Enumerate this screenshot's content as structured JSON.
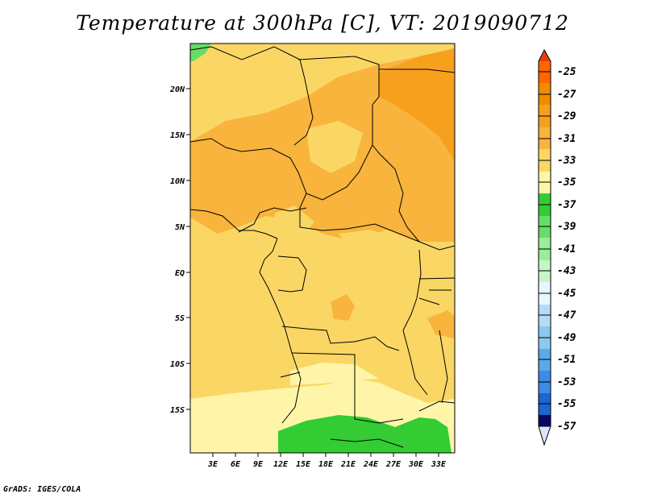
{
  "title": "Temperature at 300hPa [C], VT: 2019090712",
  "credit": "GrADS: IGES/COLA",
  "map": {
    "lon_labels": [
      "3E",
      "6E",
      "9E",
      "12E",
      "15E",
      "18E",
      "21E",
      "24E",
      "27E",
      "30E",
      "33E"
    ],
    "lat_labels": [
      "20N",
      "15N",
      "10N",
      "5N",
      "EQ",
      "5S",
      "10S",
      "15S"
    ]
  },
  "colorbar": {
    "labels": [
      "-25",
      "-27",
      "-29",
      "-31",
      "-33",
      "-35",
      "-37",
      "-39",
      "-41",
      "-43",
      "-45",
      "-47",
      "-49",
      "-51",
      "-53",
      "-55",
      "-57"
    ],
    "colors": [
      "#ff6600",
      "#f08c00",
      "#f7a01e",
      "#f8b43c",
      "#fad765",
      "#fff5a8",
      "#33cc33",
      "#66dd66",
      "#99ee99",
      "#c8f5c8",
      "#e6f8ff",
      "#b4dcf8",
      "#8cc8f0",
      "#5aaaeb",
      "#3c8ce6",
      "#1e64d2",
      "#0a3cb4"
    ],
    "arrow_top_color": "#e83c0a",
    "arrow_bottom_color": "#dde6ff",
    "bottom_color": "#0a0a64"
  }
}
